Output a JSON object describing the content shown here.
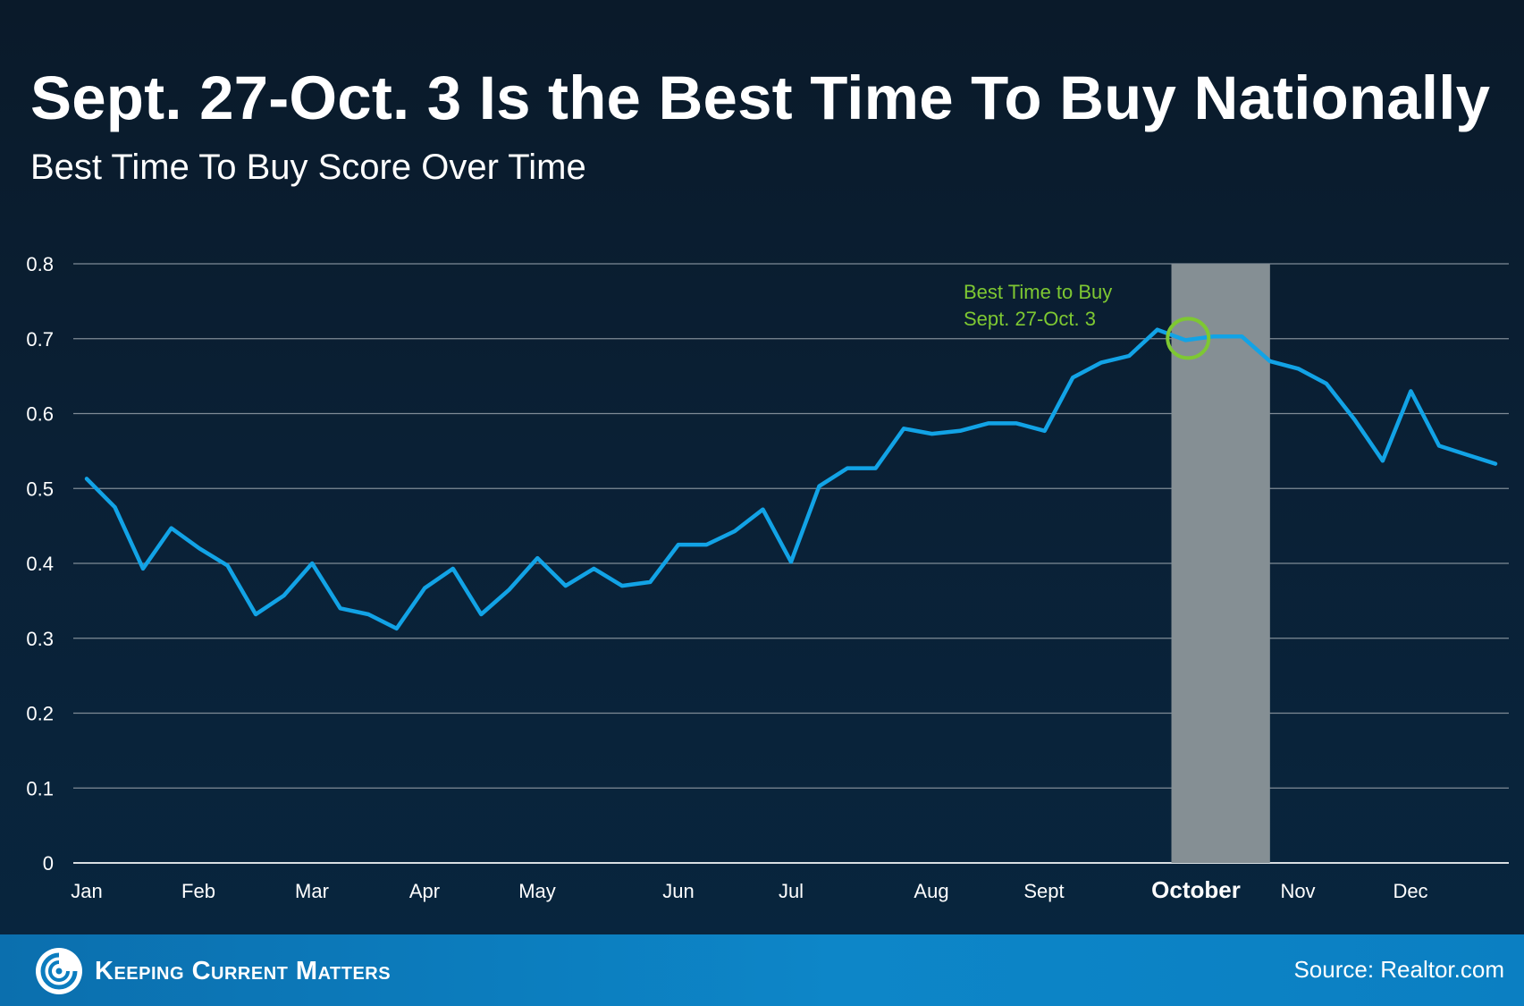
{
  "header": {
    "title": "Sept. 27-Oct. 3 Is the Best Time To Buy Nationally",
    "subtitle": "Best Time To Buy Score Over Time"
  },
  "footer": {
    "brand": "Keeping Current Matters",
    "source": "Source: Realtor.com",
    "logo_icon": "kcm-swirl-icon"
  },
  "colors": {
    "line": "#12a3e6",
    "highlight_band": "#858f94",
    "annotation": "#7ec832",
    "grid": "#7f8b96",
    "footer": "#0c7dbf"
  },
  "chart_data": {
    "type": "line",
    "ylim": [
      0,
      0.8
    ],
    "yticks": [
      "0",
      "0.1",
      "0.2",
      "0.3",
      "0.4",
      "0.5",
      "0.6",
      "0.7",
      "0.8"
    ],
    "grid": true,
    "x_labels": [
      "Jan",
      "Feb",
      "Mar",
      "Apr",
      "May",
      "Jun",
      "Jul",
      "Aug",
      "Sept",
      "October",
      "Nov",
      "Dec"
    ],
    "highlighted_label": "October",
    "highlight_range_week": [
      38.5,
      42
    ],
    "annotation": {
      "lines": [
        "Best Time to Buy",
        "Sept. 27-Oct. 3"
      ],
      "week": 39
    },
    "series": [
      {
        "values": [
          0.513,
          0.475,
          0.393,
          0.447,
          0.42,
          0.397,
          0.332,
          0.357,
          0.4,
          0.34,
          0.332,
          0.313,
          0.367,
          0.393,
          0.332,
          0.365,
          0.407,
          0.37,
          0.393,
          0.37,
          0.375,
          0.425,
          0.425,
          0.443,
          0.472,
          0.402,
          0.503,
          0.527,
          0.527,
          0.58,
          0.573,
          0.577,
          0.587,
          0.587,
          0.577,
          0.648,
          0.668,
          0.677,
          0.712,
          0.698,
          0.703,
          0.703,
          0.67,
          0.66,
          0.64,
          0.592,
          0.537,
          0.63,
          0.557,
          0.545,
          0.533
        ]
      }
    ]
  }
}
